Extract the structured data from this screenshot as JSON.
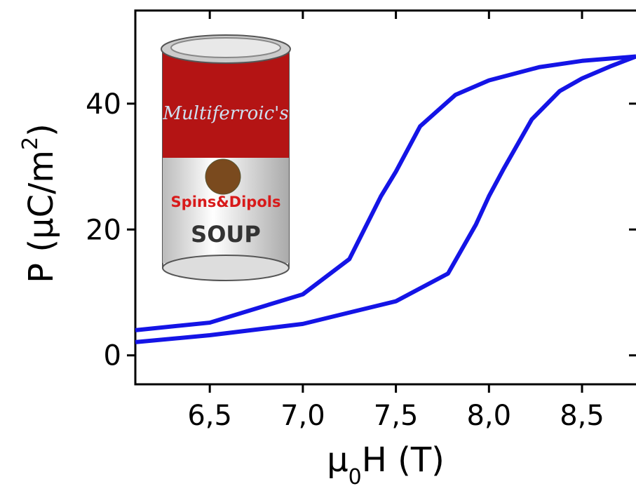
{
  "chart_data": {
    "type": "line",
    "x_label_parts": [
      "μ",
      "0",
      "H (T)"
    ],
    "y_label_parts": [
      "P (μC/m",
      "2",
      ")"
    ],
    "can_texts": [
      "Multiferroic's",
      "Spins&Dipols",
      "SOUP"
    ],
    "series": [
      {
        "color": "#1414e6",
        "x": [
          6.1,
          6.5,
          7.0,
          7.25,
          7.42,
          7.5,
          7.63,
          7.82,
          8.0,
          8.27,
          8.5,
          8.79
        ],
        "values": [
          4.0,
          5.2,
          9.7,
          15.3,
          25.3,
          29.2,
          36.4,
          41.4,
          43.7,
          45.8,
          46.8,
          47.5
        ]
      },
      {
        "color": "#1414e6",
        "x": [
          6.1,
          6.5,
          7.0,
          7.5,
          7.78,
          7.93,
          8.0,
          8.08,
          8.23,
          8.38,
          8.5,
          8.65,
          8.79
        ],
        "values": [
          2.1,
          3.2,
          5.0,
          8.6,
          13.0,
          20.8,
          25.3,
          29.7,
          37.5,
          42.0,
          44.0,
          45.9,
          47.5
        ]
      }
    ],
    "xlim": [
      6.1,
      8.79
    ],
    "ylim": [
      -4.6,
      54.8
    ],
    "xticks": [
      {
        "value": 6.5,
        "label": "6,5"
      },
      {
        "value": 7.0,
        "label": "7,0"
      },
      {
        "value": 7.5,
        "label": "7,5"
      },
      {
        "value": 8.0,
        "label": "8,0"
      },
      {
        "value": 8.5,
        "label": "8,5"
      }
    ],
    "yticks": [
      0,
      20,
      40
    ]
  }
}
